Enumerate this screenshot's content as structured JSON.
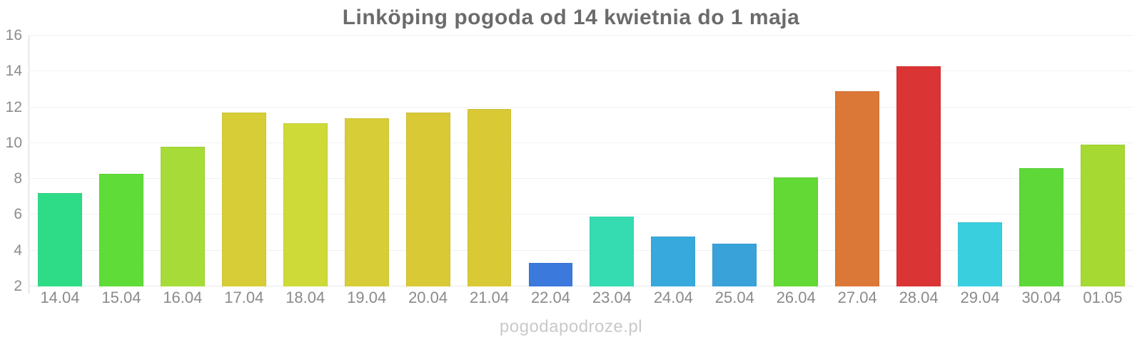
{
  "page": {
    "watermark": "pogodapodroze.pl"
  },
  "chart_data": {
    "type": "bar",
    "title": "Linköping pogoda od 14 kwietnia do 1 maja",
    "xlabel": "",
    "ylabel": "",
    "ylim": [
      2,
      16
    ],
    "yticks": [
      2,
      4,
      6,
      8,
      10,
      12,
      14,
      16
    ],
    "grid": true,
    "legend": "none",
    "categories": [
      "14.04",
      "15.04",
      "16.04",
      "17.04",
      "18.04",
      "19.04",
      "20.04",
      "21.04",
      "22.04",
      "23.04",
      "24.04",
      "25.04",
      "26.04",
      "27.04",
      "28.04",
      "29.04",
      "30.04",
      "01.05"
    ],
    "values": [
      7.2,
      8.3,
      9.8,
      11.7,
      11.1,
      11.4,
      11.7,
      11.9,
      3.3,
      5.9,
      4.8,
      4.4,
      8.1,
      12.9,
      14.3,
      5.6,
      8.6,
      9.9
    ],
    "bar_colors": [
      "#2edc87",
      "#5fdc38",
      "#a7dc38",
      "#d7cd36",
      "#cdda37",
      "#d7cd36",
      "#d9c935",
      "#d9c935",
      "#3b79dc",
      "#35dcb1",
      "#38a9dc",
      "#38a2d9",
      "#62d934",
      "#dc7837",
      "#da3434",
      "#39cfdf",
      "#5ed839",
      "#a6d932"
    ]
  },
  "colors": {
    "title_text": "#6b6b6b",
    "axis_label_text": "#8a8a8a",
    "gridline": "#f1f1f1",
    "axis_line": "#d6d6d6",
    "watermark_text": "#c9c9c9",
    "background": "#ffffff"
  }
}
